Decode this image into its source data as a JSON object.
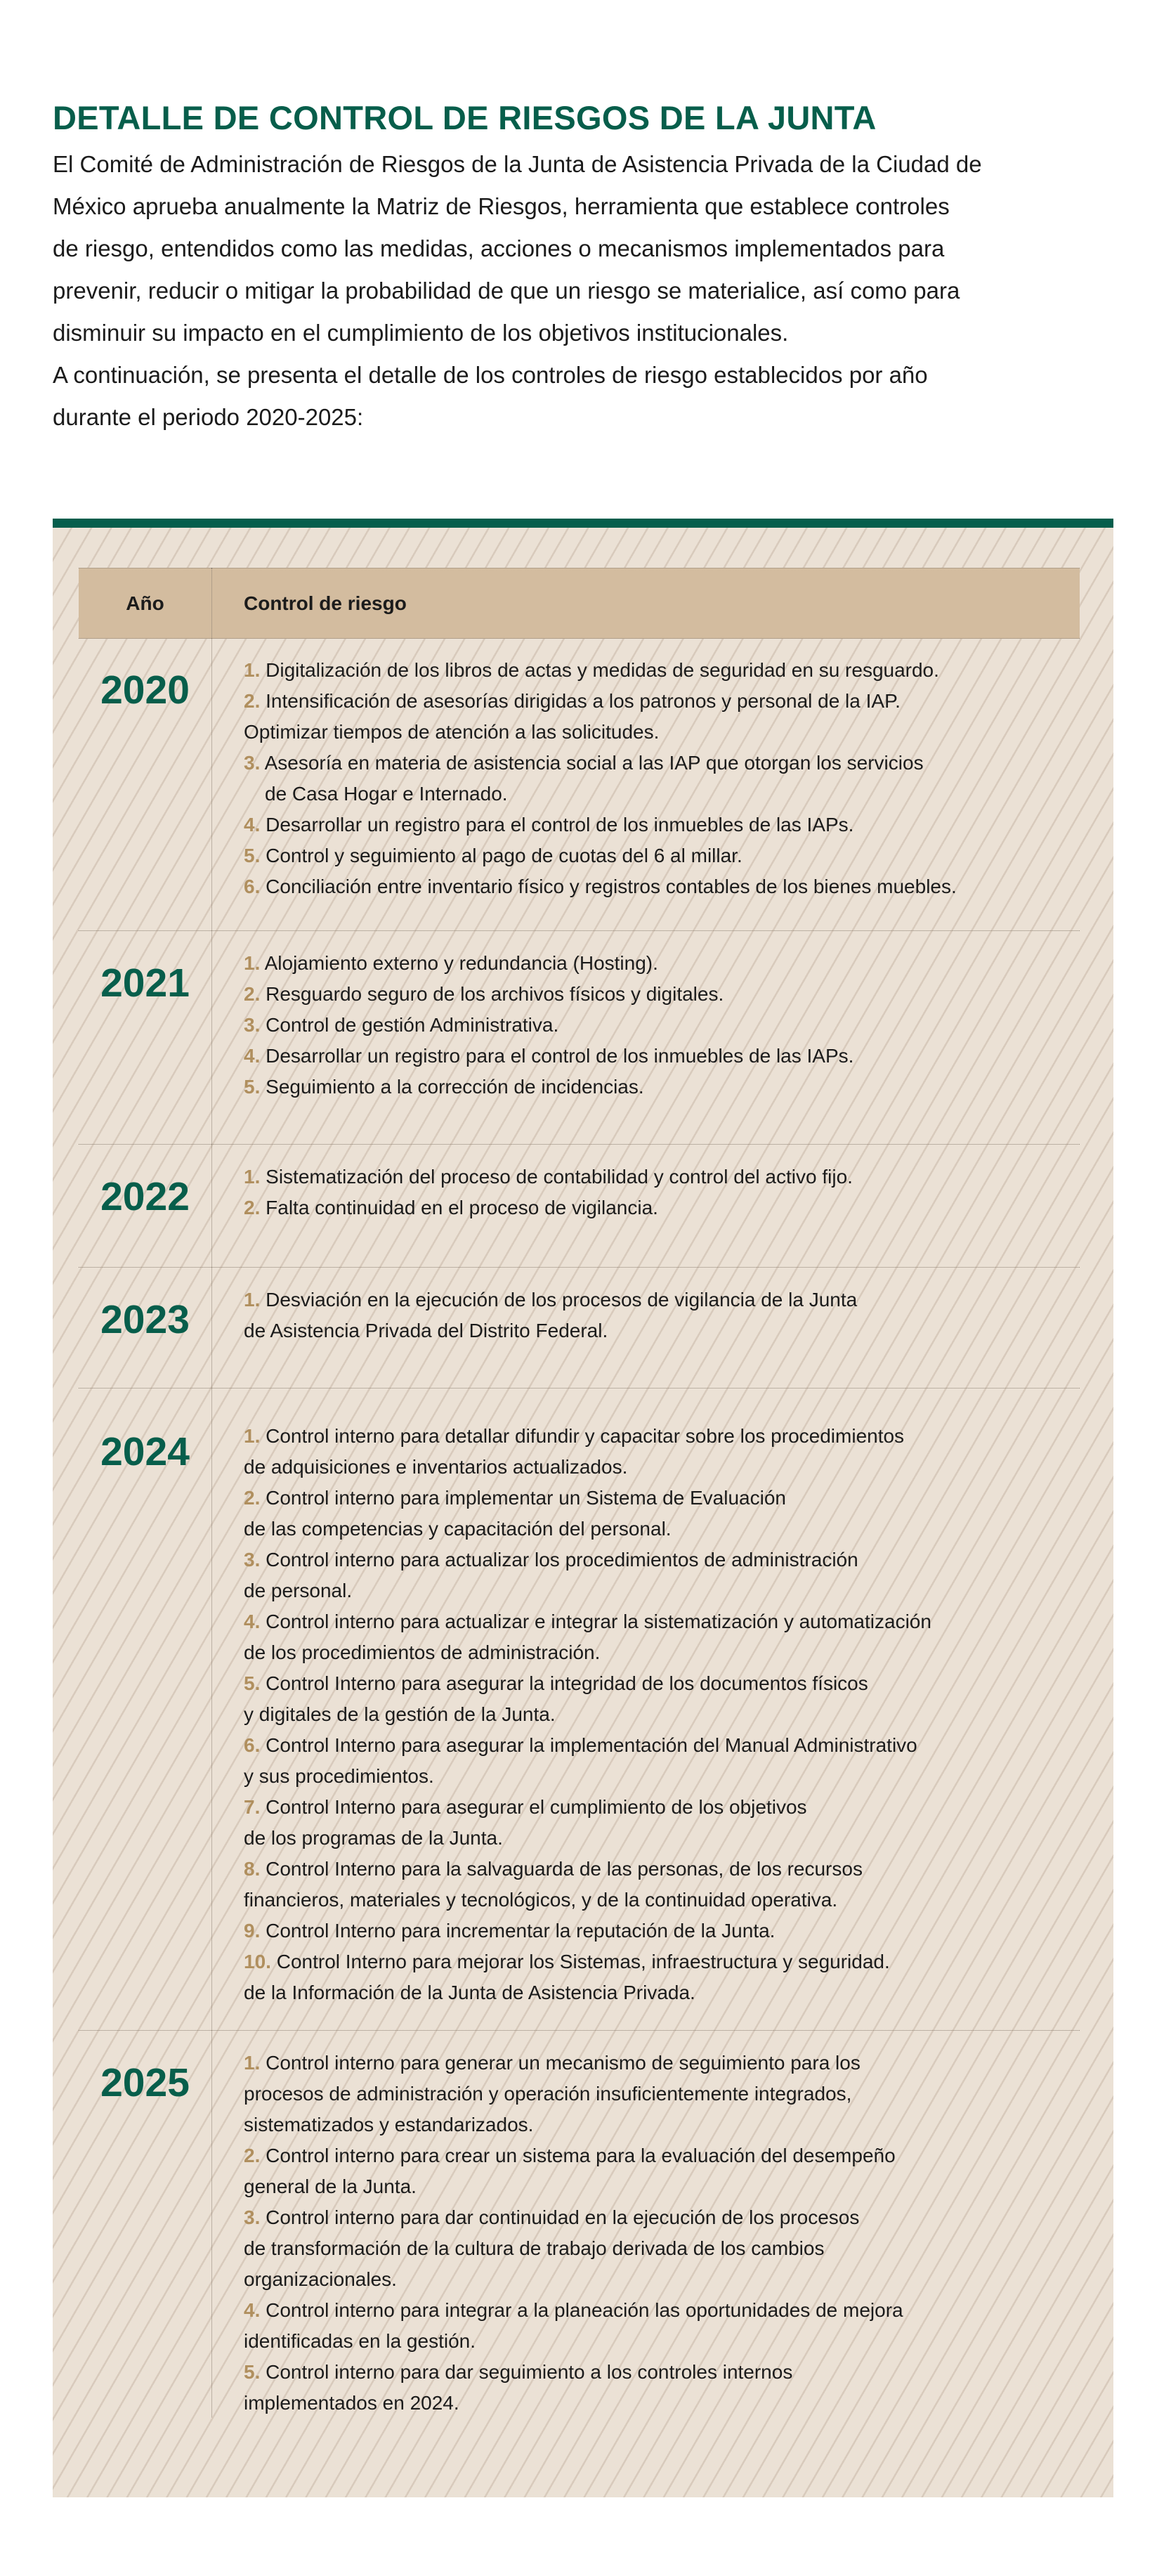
{
  "title": "DETALLE DE CONTROL DE RIESGOS DE LA JUNTA",
  "intro": [
    "El Comité de Administración de Riesgos de la Junta de Asistencia Privada de la Ciudad de",
    "México aprueba anualmente la Matriz de Riesgos, herramienta que establece controles",
    "de riesgo, entendidos como las medidas, acciones o mecanismos implementados para",
    "prevenir, reducir o mitigar la probabilidad de que un riesgo se materialice, así como para",
    "disminuir su impacto en el cumplimiento de los objetivos institucionales.",
    "A continuación, se presenta el detalle de los controles de riesgo establecidos por año",
    "durante el periodo 2020-2025:"
  ],
  "colors": {
    "green": "#075e4b",
    "number_accent": "#b08f5e",
    "header_bg": "#d3bc9f",
    "table_bg": "#ebe1d5"
  },
  "table": {
    "headers": {
      "year": "Año",
      "control": "Control de riesgo"
    },
    "rows": [
      {
        "year": "2020",
        "items": [
          {
            "num": "1.",
            "lines": [
              "Digitalización de los libros de actas y medidas de seguridad en su resguardo."
            ]
          },
          {
            "num": "2.",
            "lines": [
              "Intensificación de asesorías dirigidas a los patronos y personal de la IAP.",
              "Optimizar tiempos de atención a las solicitudes."
            ]
          },
          {
            "num": "3.",
            "lines": [
              "Asesoría en materia de asistencia social a las IAP que otorgan los servicios",
              "de Casa Hogar e Internado."
            ],
            "indent": true
          },
          {
            "num": "4.",
            "lines": [
              "Desarrollar un registro para el control de los inmuebles de las IAPs."
            ]
          },
          {
            "num": "5.",
            "lines": [
              "Control y seguimiento al pago de cuotas del 6 al millar."
            ]
          },
          {
            "num": "6.",
            "lines": [
              "Conciliación entre inventario físico y registros contables de los bienes  muebles."
            ]
          }
        ]
      },
      {
        "year": "2021",
        "items": [
          {
            "num": "1.",
            "lines": [
              "Alojamiento externo y redundancia (Hosting)."
            ]
          },
          {
            "num": "2.",
            "lines": [
              "Resguardo seguro de los archivos físicos y digitales."
            ]
          },
          {
            "num": "3.",
            "lines": [
              "Control de gestión Administrativa."
            ]
          },
          {
            "num": "4.",
            "lines": [
              "Desarrollar un registro para el control de los inmuebles de las IAPs."
            ]
          },
          {
            "num": "5.",
            "lines": [
              "Seguimiento a la corrección de incidencias."
            ]
          }
        ]
      },
      {
        "year": "2022",
        "items": [
          {
            "num": "1.",
            "lines": [
              "Sistematización del proceso de contabilidad y control del activo fijo."
            ]
          },
          {
            "num": "2.",
            "lines": [
              "Falta continuidad en el proceso de vigilancia."
            ]
          }
        ]
      },
      {
        "year": "2023",
        "items": [
          {
            "num": "1.",
            "lines": [
              "Desviación en la ejecución de los procesos de vigilancia de la Junta",
              "de Asistencia Privada del Distrito Federal."
            ]
          }
        ]
      },
      {
        "year": "2024",
        "items": [
          {
            "num": "1.",
            "lines": [
              "Control interno para detallar difundir y capacitar sobre los procedimientos",
              "de adquisiciones e inventarios actualizados."
            ]
          },
          {
            "num": "2.",
            "lines": [
              "Control interno para implementar un Sistema de Evaluación",
              "de las competencias y capacitación del personal."
            ]
          },
          {
            "num": "3.",
            "lines": [
              "Control interno para actualizar los procedimientos de administración",
              "de personal."
            ]
          },
          {
            "num": "4.",
            "lines": [
              "Control interno para actualizar e integrar la sistematización y automatización",
              "de los procedimientos de administración."
            ]
          },
          {
            "num": "5.",
            "lines": [
              "Control Interno para asegurar la integridad de los documentos físicos",
              "y digitales de la gestión de la Junta."
            ]
          },
          {
            "num": "6.",
            "lines": [
              "Control Interno para asegurar la implementación del Manual Administrativo",
              "y sus procedimientos."
            ]
          },
          {
            "num": "7.",
            "lines": [
              "Control Interno para asegurar el cumplimiento de los objetivos",
              "de los programas de la Junta."
            ]
          },
          {
            "num": "8.",
            "lines": [
              "Control Interno para la salvaguarda de las personas, de los recursos",
              "financieros, materiales y tecnológicos, y de la continuidad operativa."
            ]
          },
          {
            "num": "9.",
            "lines": [
              "Control Interno para incrementar la reputación de la Junta."
            ]
          },
          {
            "num": "10.",
            "lines": [
              "Control Interno para mejorar los Sistemas, infraestructura y seguridad.",
              "de la Información de la Junta de Asistencia Privada."
            ]
          }
        ]
      },
      {
        "year": "2025",
        "items": [
          {
            "num": "1.",
            "lines": [
              "Control interno para generar un mecanismo de seguimiento para los",
              "procesos de administración y operación insuficientemente integrados,",
              "sistematizados y estandarizados."
            ]
          },
          {
            "num": "2.",
            "lines": [
              "Control interno para crear un sistema para la evaluación del desempeño",
              "general de la Junta."
            ]
          },
          {
            "num": "3.",
            "lines": [
              "Control interno para dar continuidad en la ejecución de los procesos",
              "de transformación de la cultura de trabajo derivada de los cambios",
              "organizacionales."
            ]
          },
          {
            "num": "4.",
            "lines": [
              "Control interno para integrar a la planeación las oportunidades de mejora",
              "identificadas en la gestión."
            ]
          },
          {
            "num": "5.",
            "lines": [
              "Control interno para dar seguimiento a los controles internos",
              "implementados en 2024."
            ]
          }
        ]
      }
    ]
  }
}
